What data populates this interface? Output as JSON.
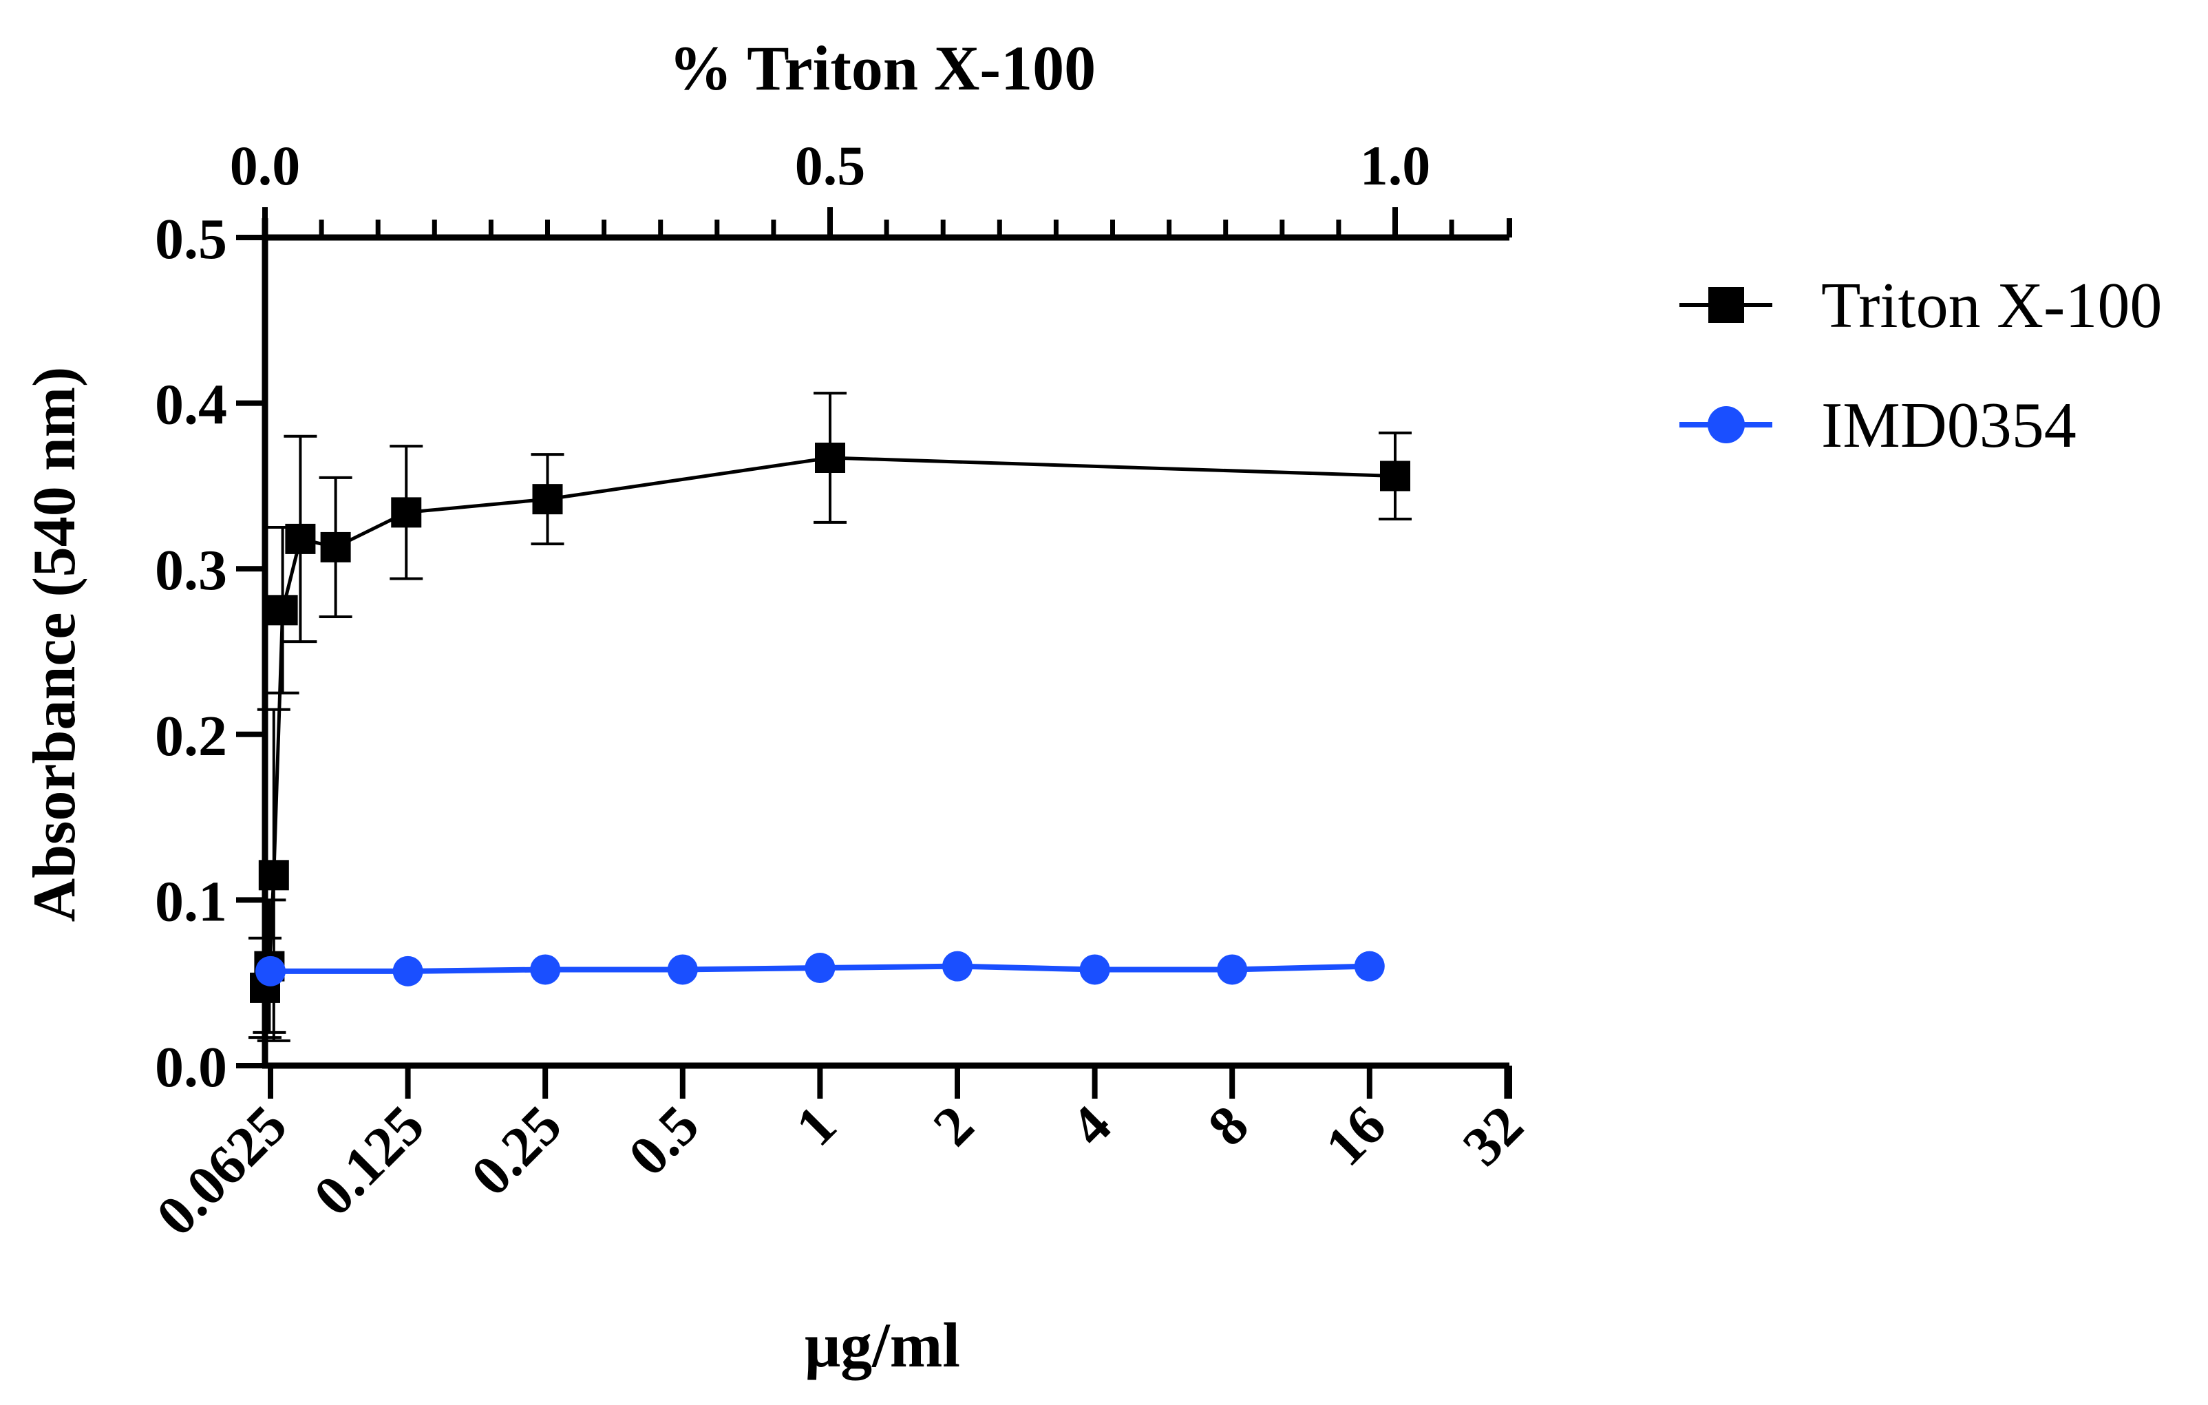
{
  "chart_data": {
    "type": "line",
    "title": "",
    "ylabel": "Absorbance (540 nm)",
    "ylim": [
      0,
      0.5
    ],
    "yticks": [
      "0.0",
      "0.1",
      "0.2",
      "0.3",
      "0.4",
      "0.5"
    ],
    "top_axis": {
      "label": "% Triton X-100",
      "range": [
        0,
        1.1
      ],
      "major_ticks": [
        0,
        0.5,
        1.0
      ],
      "major_tick_labels": [
        "0.0",
        "0.5",
        "1.0"
      ],
      "minor_ticks": [
        0.05,
        0.1,
        0.15,
        0.2,
        0.25,
        0.3,
        0.35,
        0.4,
        0.45,
        0.55,
        0.6,
        0.65,
        0.7,
        0.75,
        0.8,
        0.85,
        0.9,
        0.95,
        1.05
      ]
    },
    "bottom_axis": {
      "label": "μg/ml",
      "scale": "log2",
      "ticks": [
        0.0625,
        0.125,
        0.25,
        0.5,
        1,
        2,
        4,
        8,
        16,
        32
      ],
      "tick_labels": [
        "0.0625",
        "0.125",
        "0.25",
        "0.5",
        "1",
        "2",
        "4",
        "8",
        "16",
        "32"
      ]
    },
    "series": [
      {
        "name": "Triton X-100",
        "axis": "top",
        "color": "#000000",
        "marker": "square",
        "x": [
          0,
          0.0039,
          0.0078,
          0.0156,
          0.0313,
          0.0625,
          0.125,
          0.25,
          0.5,
          1.0
        ],
        "y": [
          0.047,
          0.06,
          0.115,
          0.275,
          0.318,
          0.313,
          0.334,
          0.342,
          0.367,
          0.356
        ],
        "error": [
          0.03,
          0.04,
          0.1,
          0.05,
          0.062,
          0.042,
          0.04,
          0.027,
          0.039,
          0.026
        ]
      },
      {
        "name": "IMD0354",
        "axis": "bottom",
        "color": "#1a4fff",
        "marker": "circle",
        "x": [
          0.0625,
          0.125,
          0.25,
          0.5,
          1,
          2,
          4,
          8,
          16
        ],
        "y": [
          0.057,
          0.057,
          0.058,
          0.058,
          0.059,
          0.06,
          0.058,
          0.058,
          0.06
        ]
      }
    ]
  }
}
